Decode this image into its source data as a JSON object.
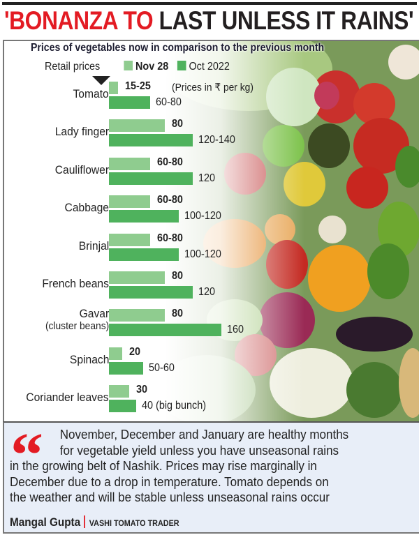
{
  "headline": {
    "red_part": "'BONANZA TO",
    "dark_part": " LAST UNLESS IT RAINS'"
  },
  "colors": {
    "headline_red": "#e31b23",
    "nov_bar": "#8fcc8f",
    "oct_bar": "#4fb25d",
    "quote_bg": "#e8eef8"
  },
  "chart": {
    "subtitle": "Prices of vegetables now in comparison to the previous month",
    "legend_label": "Retail prices",
    "legend": [
      "Nov 28",
      "Oct 2022"
    ],
    "unit_note": "(Prices in ₹ per kg)"
  },
  "chart_data": {
    "type": "bar",
    "orientation": "horizontal",
    "title": "Prices of vegetables now in comparison to the previous month",
    "subtitle": "Retail prices (Prices in ₹ per kg)",
    "categories": [
      "Tomato",
      "Lady finger",
      "Cauliflower",
      "Cabbage",
      "Brinjal",
      "French beans",
      "Gavar (cluster beans)",
      "Spinach",
      "Coriander leaves"
    ],
    "series": [
      {
        "name": "Nov 28",
        "labels": [
          "15-25",
          "80",
          "60-80",
          "60-80",
          "60-80",
          "80",
          "80",
          "20",
          "30"
        ],
        "values": [
          20,
          80,
          70,
          70,
          70,
          80,
          80,
          20,
          30
        ]
      },
      {
        "name": "Oct 2022",
        "labels": [
          "60-80",
          "120-140",
          "120",
          "100-120",
          "100-120",
          "120",
          "160",
          "50-60",
          "40 (big bunch)"
        ],
        "values": [
          70,
          130,
          120,
          110,
          110,
          120,
          160,
          55,
          40
        ]
      }
    ],
    "xlabel": "",
    "ylabel": "",
    "grid": false,
    "legend_position": "top"
  },
  "rows": [
    {
      "name": "Tomato",
      "sub": "",
      "nov": "15-25",
      "oct": "60-80",
      "nov_w": 13,
      "oct_w": 59
    },
    {
      "name": "Lady finger",
      "sub": "",
      "nov": "80",
      "oct": "120-140",
      "nov_w": 80,
      "oct_w": 120
    },
    {
      "name": "Cauliflower",
      "sub": "",
      "nov": "60-80",
      "oct": "120",
      "nov_w": 59,
      "oct_w": 120
    },
    {
      "name": "Cabbage",
      "sub": "",
      "nov": "60-80",
      "oct": "100-120",
      "nov_w": 59,
      "oct_w": 100
    },
    {
      "name": "Brinjal",
      "sub": "",
      "nov": "60-80",
      "oct": "100-120",
      "nov_w": 59,
      "oct_w": 100
    },
    {
      "name": "French beans",
      "sub": "",
      "nov": "80",
      "oct": "120",
      "nov_w": 80,
      "oct_w": 120
    },
    {
      "name": "Gavar",
      "sub": "(cluster beans)",
      "nov": "80",
      "oct": "160",
      "nov_w": 80,
      "oct_w": 161
    },
    {
      "name": "Spinach",
      "sub": "",
      "nov": "20",
      "oct": "50-60",
      "nov_w": 19,
      "oct_w": 49
    },
    {
      "name": "Coriander leaves",
      "sub": "",
      "nov": "30",
      "oct": "40 (big bunch)",
      "nov_w": 29,
      "oct_w": 39
    }
  ],
  "quote": {
    "mark": "“",
    "line1": "November, December and January are healthy months",
    "line2": "for vegetable yield unless you have unseasonal rains",
    "line3": "in the growing belt of Nashik. Prices may rise marginally in",
    "line4": "December due to a drop in temperature. Tomato depends on",
    "line5": "the weather and will be stable unless unseasonal rains occur",
    "name": "Mangal Gupta",
    "role": "VASHI TOMATO TRADER"
  }
}
